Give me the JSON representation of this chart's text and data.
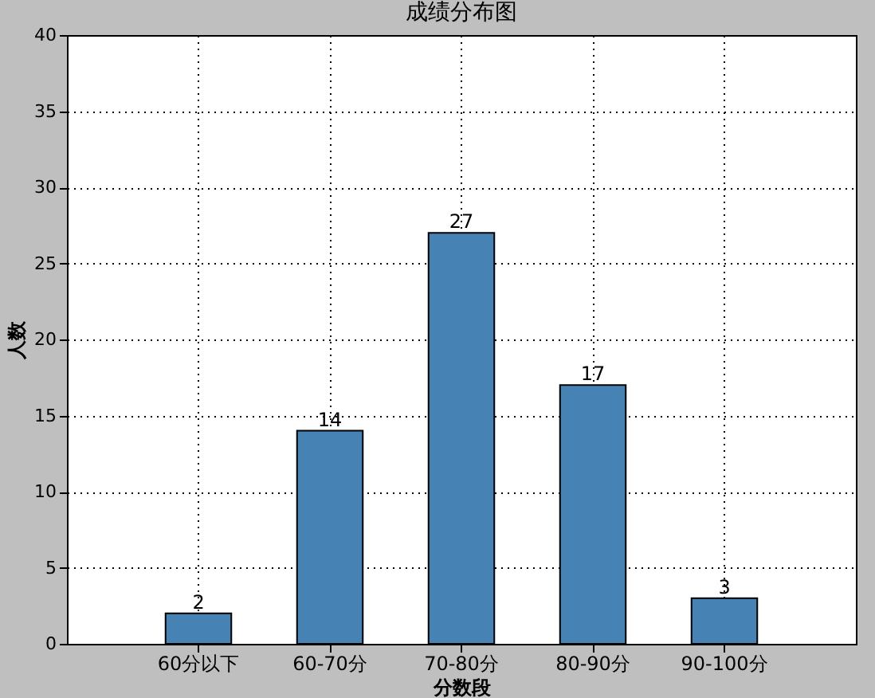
{
  "chart_data": {
    "type": "bar",
    "title": "成绩分布图",
    "xlabel": "分数段",
    "ylabel": "人数",
    "categories": [
      "60分以下",
      "60-70分",
      "70-80分",
      "80-90分",
      "90-100分"
    ],
    "values": [
      2,
      14,
      27,
      17,
      3
    ],
    "color": "#4682b4",
    "ylim": [
      0,
      40
    ],
    "yticks": [
      0,
      5,
      10,
      15,
      20,
      25,
      30,
      35,
      40
    ],
    "grid": true,
    "data_labels": true
  }
}
